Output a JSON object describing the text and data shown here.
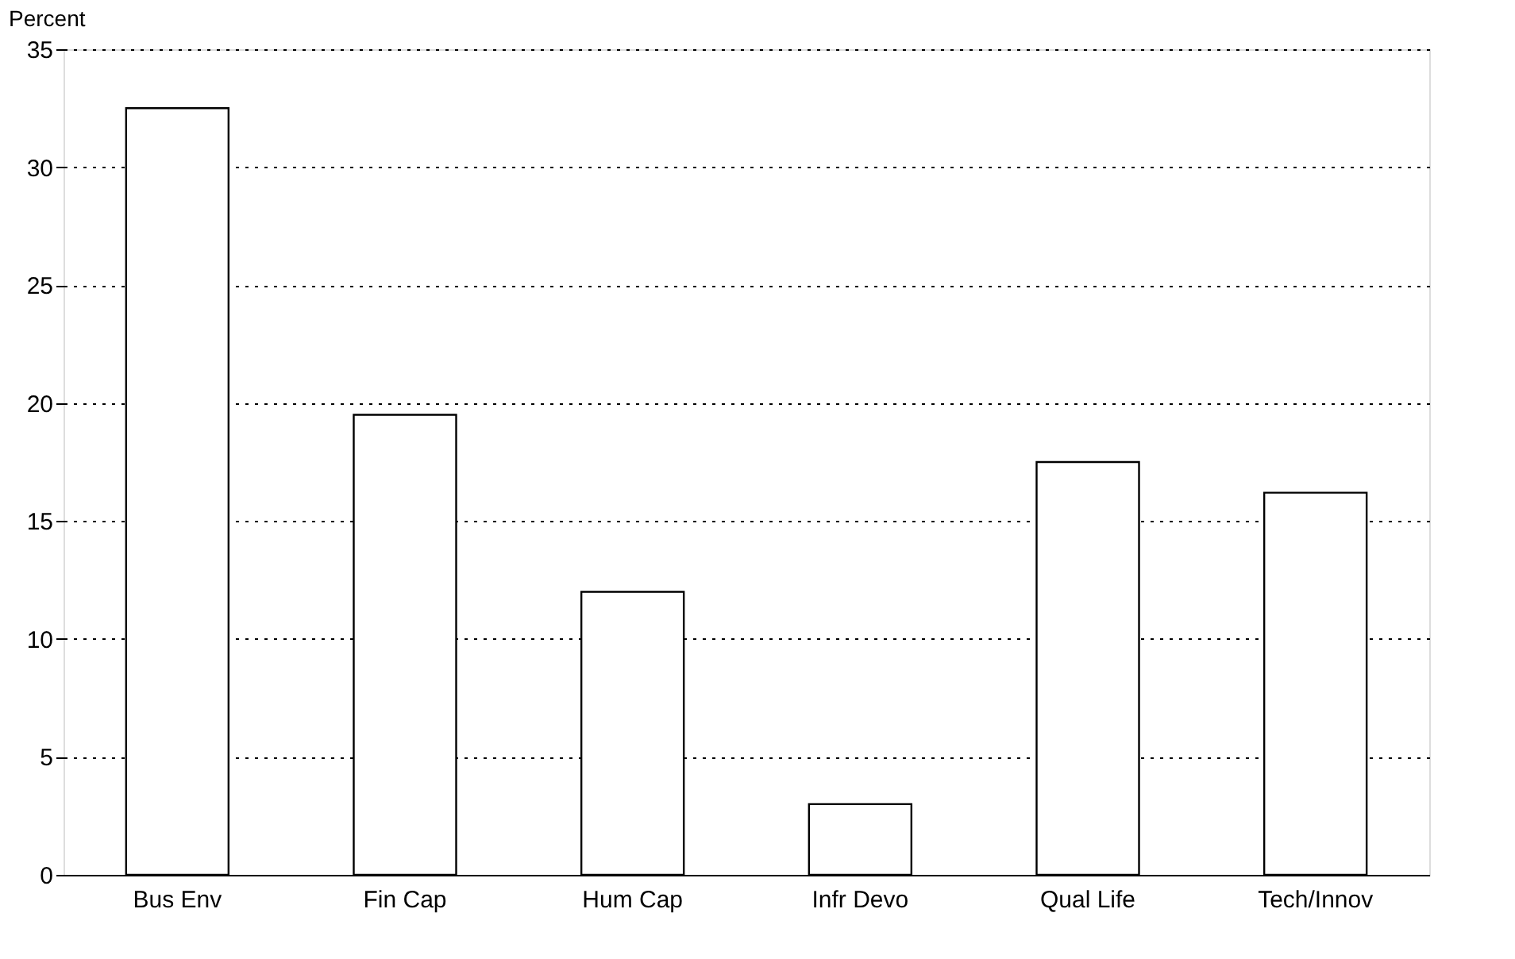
{
  "chart_data": {
    "type": "bar",
    "ylabel": "Percent",
    "categories": [
      "Bus Env",
      "Fin Cap",
      "Hum Cap",
      "Infr Devo",
      "Qual Life",
      "Tech/Innov"
    ],
    "values": [
      32.5,
      19.5,
      12,
      3,
      17.5,
      16.2
    ],
    "color": "#ffffff",
    "ylim": [
      0,
      35
    ],
    "yticks": [
      0,
      5,
      10,
      15,
      20,
      25,
      30,
      35
    ],
    "grid": "y"
  }
}
